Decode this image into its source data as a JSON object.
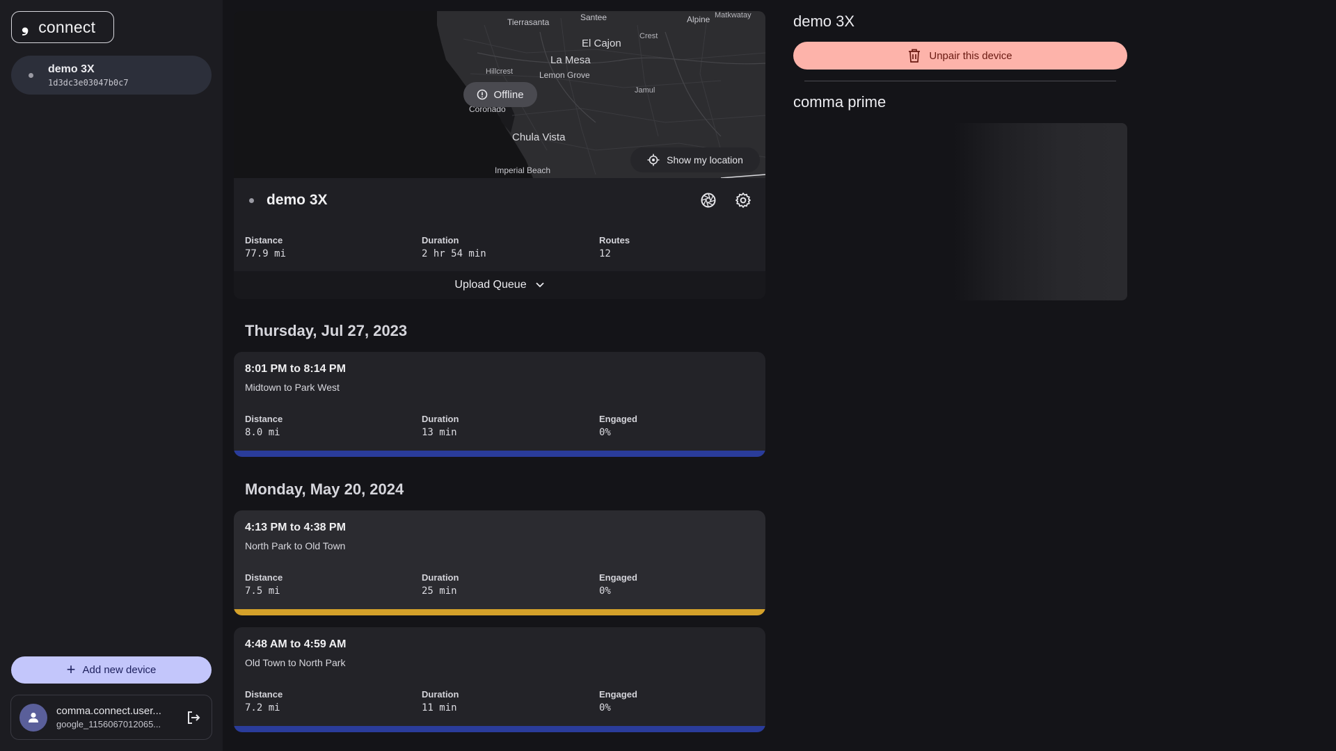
{
  "sidebar": {
    "logo_mark": "❟",
    "logo_text": "connect",
    "device": {
      "name": "demo 3X",
      "serial": "1d3dc3e03047b0c7"
    },
    "add_device_label": "Add new device",
    "account": {
      "name": "comma.connect.user...",
      "id": "google_1156067012065..."
    }
  },
  "map": {
    "labels": [
      "Tierrasanta",
      "Santee",
      "Alpine",
      "Matkwatay",
      "El Cajon",
      "Crest",
      "La Mesa",
      "Hillcrest",
      "Lemon Grove",
      "Jamul",
      "Coronado",
      "Chula Vista",
      "Imperial Beach"
    ],
    "offline_label": "Offline",
    "show_location_label": "Show my location"
  },
  "device_card": {
    "name": "demo 3X",
    "stats": [
      {
        "label": "Distance",
        "value": "77.9 mi"
      },
      {
        "label": "Duration",
        "value": "2 hr 54 min"
      },
      {
        "label": "Routes",
        "value": "12"
      }
    ],
    "upload_queue_label": "Upload Queue"
  },
  "route_groups": [
    {
      "date": "Thursday, Jul 27, 2023",
      "routes": [
        {
          "time": "8:01 PM to 8:14 PM",
          "place": "Midtown to Park West",
          "stats": [
            {
              "label": "Distance",
              "value": "8.0 mi"
            },
            {
              "label": "Duration",
              "value": "13 min"
            },
            {
              "label": "Engaged",
              "value": "0%"
            }
          ],
          "bar_color": "#2a3c9a"
        }
      ]
    },
    {
      "date": "Monday, May 20, 2024",
      "routes": [
        {
          "time": "4:13 PM to 4:38 PM",
          "place": "North Park to Old Town",
          "stats": [
            {
              "label": "Distance",
              "value": "7.5 mi"
            },
            {
              "label": "Duration",
              "value": "25 min"
            },
            {
              "label": "Engaged",
              "value": "0%"
            }
          ],
          "bar_color": "#d4a12a"
        },
        {
          "time": "4:48 AM to 4:59 AM",
          "place": "Old Town to North Park",
          "stats": [
            {
              "label": "Distance",
              "value": "7.2 mi"
            },
            {
              "label": "Duration",
              "value": "11 min"
            },
            {
              "label": "Engaged",
              "value": "0%"
            }
          ],
          "bar_color": "#2a3c9a"
        }
      ]
    }
  ],
  "right_panel": {
    "title": "demo 3X",
    "unpair_label": "Unpair this device",
    "prime_title": "comma prime"
  },
  "colors": {
    "background": "#141418",
    "sidebar": "#1c1c21",
    "accent_add": "#c3c6fb",
    "accent_unpair": "#fdb3aa",
    "route_bar_blue": "#2a3c9a",
    "route_bar_yellow": "#d4a12a"
  }
}
